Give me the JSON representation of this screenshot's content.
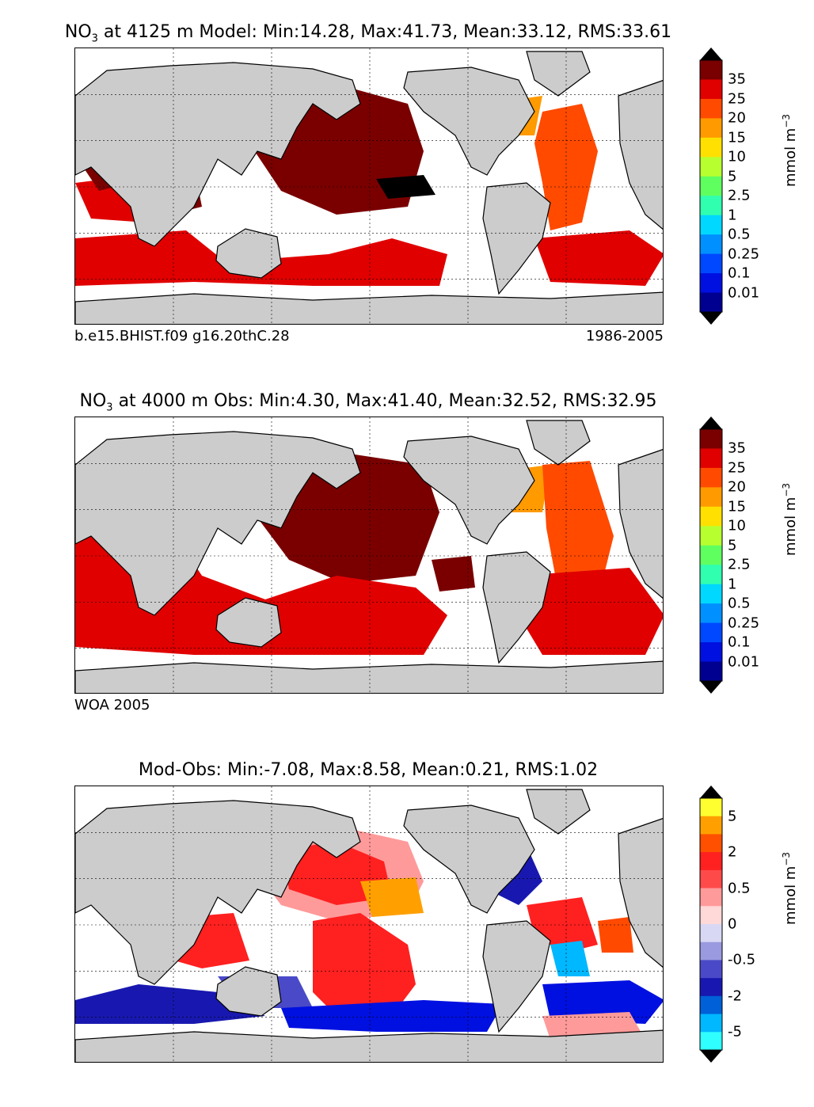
{
  "panels": [
    {
      "id": "model",
      "title_main": "NO",
      "title_sub": "3",
      "title_rest": " at 4125 m Model: Min:14.28, Max:41.73, Mean:33.12, RMS:33.61",
      "caption_left": "b.e15.BHIST.f09 g16.20thC.28",
      "caption_right": "1986-2005",
      "colorbar": {
        "ticks": [
          "35",
          "25",
          "20",
          "15",
          "10",
          "5",
          "2.5",
          "1",
          "0.5",
          "0.25",
          "0.1",
          "0.01"
        ],
        "colors": [
          "#7a0000",
          "#e00000",
          "#ff4a00",
          "#ff9a00",
          "#ffe000",
          "#b8ff30",
          "#60ff60",
          "#30ffb0",
          "#00d8ff",
          "#0090ff",
          "#0048ff",
          "#0010e0",
          "#000090"
        ],
        "top_arrow": "#000000",
        "bottom_arrow": "#000000",
        "unit_main": "mmol m",
        "unit_sup": "−3"
      }
    },
    {
      "id": "obs",
      "title_main": "NO",
      "title_sub": "3",
      "title_rest": " at 4000 m Obs: Min:4.30, Max:41.40, Mean:32.52, RMS:32.95",
      "caption_left": "WOA 2005",
      "caption_right": "",
      "colorbar": {
        "ticks": [
          "35",
          "25",
          "20",
          "15",
          "10",
          "5",
          "2.5",
          "1",
          "0.5",
          "0.25",
          "0.1",
          "0.01"
        ],
        "colors": [
          "#7a0000",
          "#e00000",
          "#ff4a00",
          "#ff9a00",
          "#ffe000",
          "#b8ff30",
          "#60ff60",
          "#30ffb0",
          "#00d8ff",
          "#0090ff",
          "#0048ff",
          "#0010e0",
          "#000090"
        ],
        "top_arrow": "#000000",
        "bottom_arrow": "#000000",
        "unit_main": "mmol m",
        "unit_sup": "−3"
      }
    },
    {
      "id": "diff",
      "title_main": "Mod-Obs: Min:-7.08, Max:8.58, Mean:0.21, RMS:1.02",
      "title_sub": "",
      "title_rest": "",
      "caption_left": "",
      "caption_right": "",
      "colorbar": {
        "ticks": [
          "5",
          "",
          "2",
          "",
          "0.5",
          "",
          "0",
          "",
          "-0.5",
          "",
          "-2",
          "",
          "-5"
        ],
        "colors": [
          "#ffff30",
          "#ffa000",
          "#ff5000",
          "#ff2020",
          "#ff4a4a",
          "#ff9a9a",
          "#ffd8d8",
          "#d8d8f4",
          "#9a9ae0",
          "#4a4ac8",
          "#1818b0",
          "#0060d8",
          "#00b8ff",
          "#30ffff"
        ],
        "top_arrow": "#000000",
        "bottom_arrow": "#000000",
        "unit_main": "mmol m",
        "unit_sup": "−3"
      }
    }
  ],
  "chart_data": [
    {
      "type": "heatmap",
      "title": "NO3 at 4125 m Model: Min:14.28, Max:41.73, Mean:33.12, RMS:33.61",
      "projection": "global map, longitude 20E to 380E",
      "stats": {
        "min": 14.28,
        "max": 41.73,
        "mean": 33.12,
        "rms": 33.61
      },
      "depth_m": 4125,
      "levels": [
        0.01,
        0.1,
        0.25,
        0.5,
        1,
        2.5,
        5,
        10,
        15,
        20,
        25,
        35
      ],
      "units": "mmol m-3",
      "grid": true,
      "legend": "right colorbar"
    },
    {
      "type": "heatmap",
      "title": "NO3 at 4000 m Obs: Min:4.30, Max:41.40, Mean:32.52, RMS:32.95",
      "stats": {
        "min": 4.3,
        "max": 41.4,
        "mean": 32.52,
        "rms": 32.95
      },
      "depth_m": 4000,
      "levels": [
        0.01,
        0.1,
        0.25,
        0.5,
        1,
        2.5,
        5,
        10,
        15,
        20,
        25,
        35
      ],
      "units": "mmol m-3",
      "grid": true,
      "legend": "right colorbar"
    },
    {
      "type": "heatmap",
      "title": "Mod-Obs: Min:-7.08, Max:8.58, Mean:0.21, RMS:1.02",
      "stats": {
        "min": -7.08,
        "max": 8.58,
        "mean": 0.21,
        "rms": 1.02
      },
      "levels": [
        -5,
        -2,
        -0.5,
        0,
        0.5,
        2,
        5
      ],
      "units": "mmol m-3",
      "grid": true,
      "legend": "right colorbar"
    }
  ]
}
